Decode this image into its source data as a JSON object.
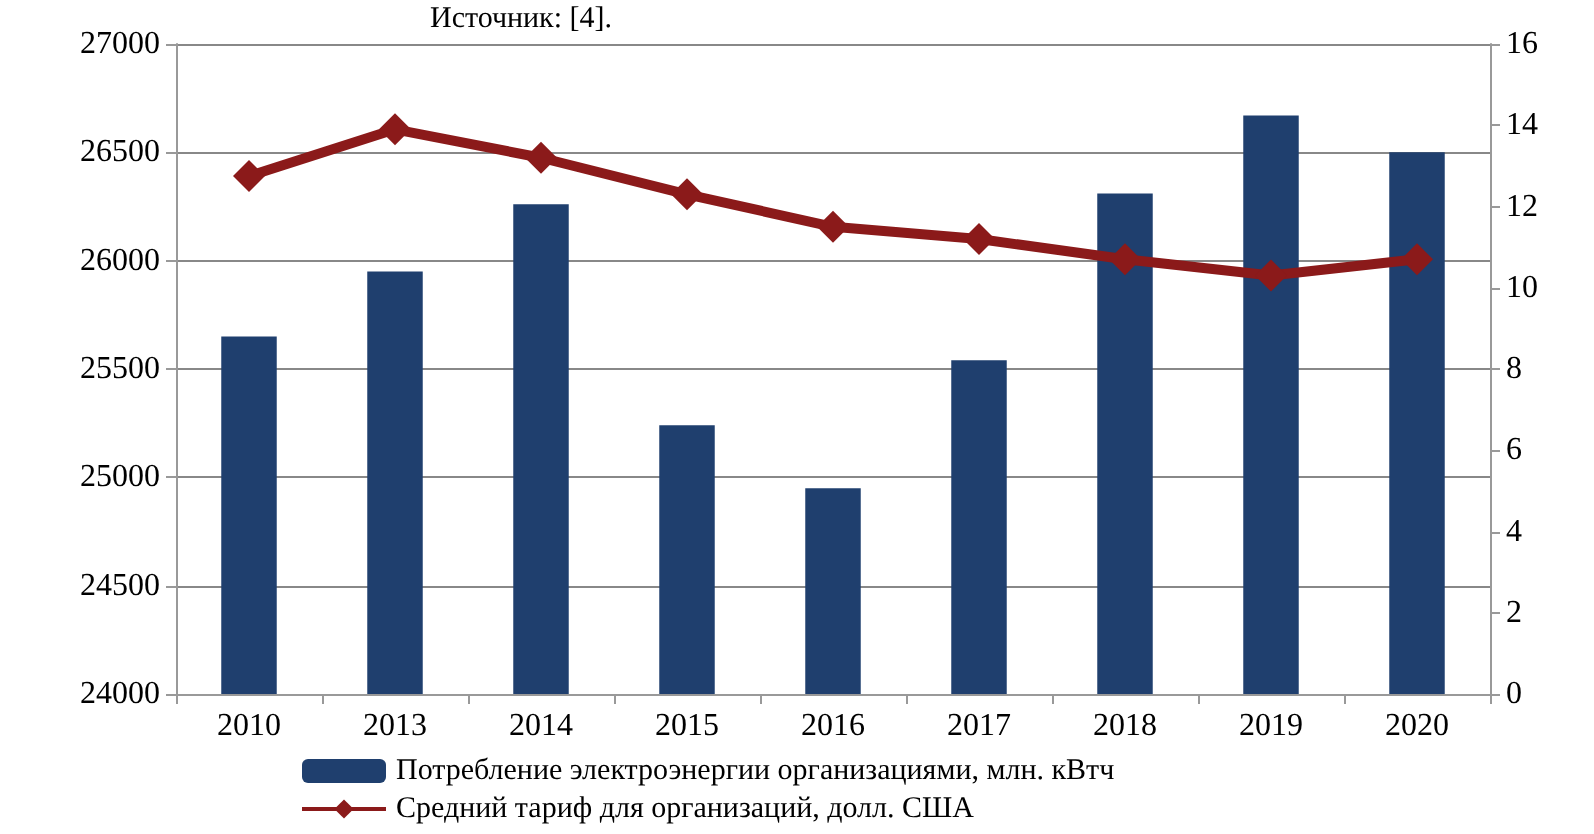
{
  "chart_data": {
    "type": "bar",
    "annotations": [
      "Источник: [4]."
    ],
    "categories": [
      "2010",
      "2013",
      "2014",
      "2015",
      "2016",
      "2017",
      "2018",
      "2019",
      "2020"
    ],
    "series": [
      {
        "name": "Потребление электроэнергии организациями, млн. кВтч",
        "color": "#1f3f6e",
        "values": [
          25650,
          25950,
          26260,
          25240,
          24950,
          25540,
          26310,
          26670,
          26500
        ]
      },
      {
        "name": "Средний тариф для организаций, долл. США",
        "type": "line",
        "axis": "y2",
        "color": "#8b1a1a",
        "marker": "diamond",
        "values": [
          12.75,
          13.9,
          13.2,
          12.3,
          11.5,
          11.2,
          10.7,
          10.3,
          10.7
        ]
      }
    ],
    "ylim": [
      24000,
      27000
    ],
    "yticks": [
      24000,
      24500,
      25000,
      25500,
      26000,
      26500,
      27000
    ],
    "y2lim": [
      0,
      16
    ],
    "y2ticks": [
      0,
      2,
      4,
      6,
      8,
      10,
      12,
      14,
      16
    ],
    "grid": "y",
    "legend": "bottom"
  }
}
